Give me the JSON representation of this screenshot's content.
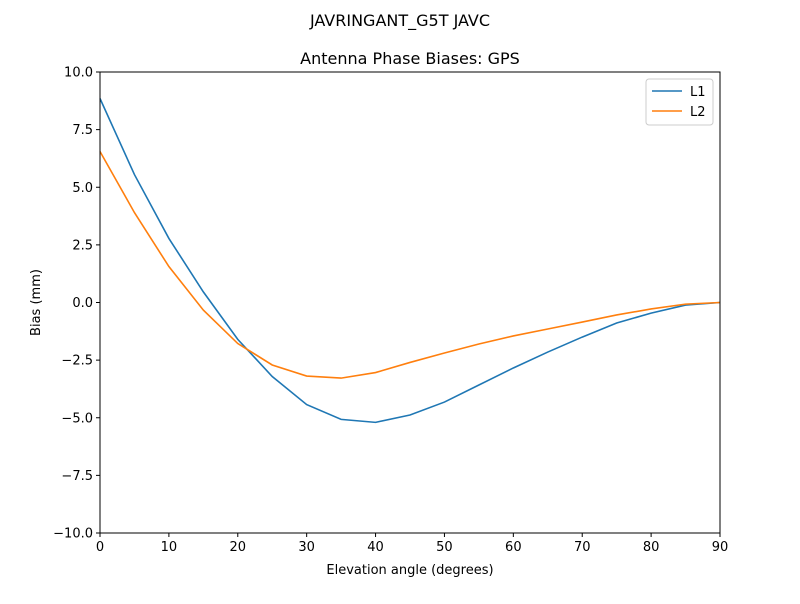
{
  "chart_data": {
    "type": "line",
    "suptitle": "JAVRINGANT_G5T  JAVC",
    "title": "Antenna Phase Biases: GPS",
    "xlabel": "Elevation angle (degrees)",
    "ylabel": "Bias (mm)",
    "xlim": [
      0,
      90
    ],
    "ylim": [
      -10,
      10
    ],
    "xticks": [
      0,
      10,
      20,
      30,
      40,
      50,
      60,
      70,
      80,
      90
    ],
    "xtick_labels": [
      "0",
      "10",
      "20",
      "30",
      "40",
      "50",
      "60",
      "70",
      "80",
      "90"
    ],
    "yticks": [
      -10,
      -7.5,
      -5,
      -2.5,
      0,
      2.5,
      5,
      7.5,
      10
    ],
    "ytick_labels": [
      "−10.0",
      "−7.5",
      "−5.0",
      "−2.5",
      "0.0",
      "2.5",
      "5.0",
      "7.5",
      "10.0"
    ],
    "grid": false,
    "legend_position": "top-right",
    "x": [
      0,
      5,
      10,
      15,
      20,
      25,
      30,
      35,
      40,
      45,
      50,
      55,
      60,
      65,
      70,
      75,
      80,
      85,
      90
    ],
    "series": [
      {
        "name": "L1",
        "color": "#1f77b4",
        "values": [
          8.85,
          5.55,
          2.78,
          0.46,
          -1.6,
          -3.21,
          -4.43,
          -5.07,
          -5.2,
          -4.88,
          -4.32,
          -3.58,
          -2.84,
          -2.15,
          -1.5,
          -0.89,
          -0.46,
          -0.11,
          0.0
        ]
      },
      {
        "name": "L2",
        "color": "#ff7f0e",
        "values": [
          6.55,
          3.9,
          1.56,
          -0.33,
          -1.78,
          -2.71,
          -3.19,
          -3.28,
          -3.04,
          -2.6,
          -2.19,
          -1.8,
          -1.45,
          -1.15,
          -0.85,
          -0.54,
          -0.28,
          -0.07,
          0.0
        ]
      }
    ]
  }
}
